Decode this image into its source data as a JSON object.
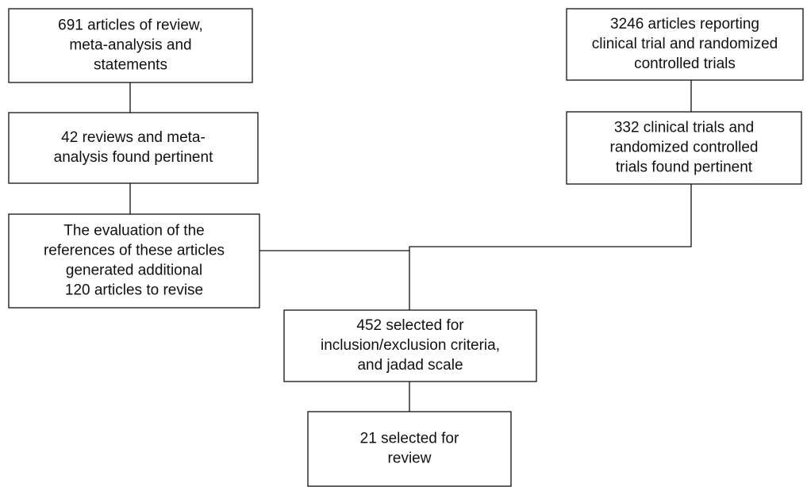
{
  "nodes": [
    {
      "lines": [
        "691 articles of review,",
        "meta-analysis and",
        "statements"
      ]
    },
    {
      "lines": [
        "42 reviews and meta-",
        "analysis found pertinent"
      ]
    },
    {
      "lines": [
        "The evaluation of the",
        "references of these articles",
        "generated additional",
        "120 articles to revise"
      ]
    },
    {
      "lines": [
        "3246 articles reporting",
        "clinical trial and randomized",
        "controlled trials"
      ]
    },
    {
      "lines": [
        "332 clinical trials and",
        "randomized controlled",
        "trials found pertinent"
      ]
    },
    {
      "lines": [
        "452 selected for",
        "inclusion/exclusion criteria,",
        "and jadad scale"
      ]
    },
    {
      "lines": [
        "21 selected for",
        "review"
      ]
    }
  ]
}
